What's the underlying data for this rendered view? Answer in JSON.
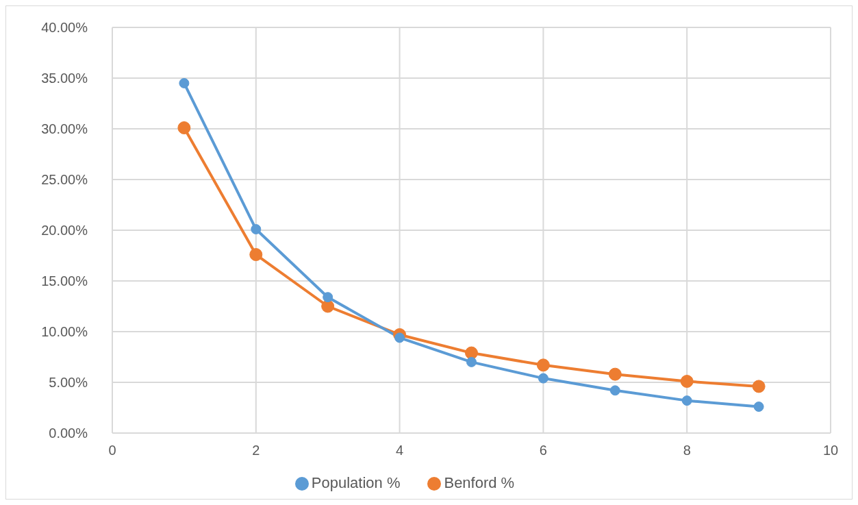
{
  "chart_data": {
    "type": "line",
    "x": [
      1,
      2,
      3,
      4,
      5,
      6,
      7,
      8,
      9
    ],
    "series": [
      {
        "name": "Population %",
        "color": "#5b9bd5",
        "values": [
          34.5,
          20.1,
          13.4,
          9.4,
          7.0,
          5.4,
          4.2,
          3.2,
          2.6
        ]
      },
      {
        "name": "Benford %",
        "color": "#ed7d31",
        "values": [
          30.1,
          17.6,
          12.5,
          9.7,
          7.9,
          6.7,
          5.8,
          5.1,
          4.6
        ]
      }
    ],
    "xlim": [
      0,
      10
    ],
    "xticks": [
      0,
      2,
      4,
      6,
      8,
      10
    ],
    "ylim": [
      0,
      40
    ],
    "yticks": [
      {
        "value": 0,
        "label": "0.00%"
      },
      {
        "value": 5,
        "label": "5.00%"
      },
      {
        "value": 10,
        "label": "10.00%"
      },
      {
        "value": 15,
        "label": "15.00%"
      },
      {
        "value": 20,
        "label": "20.00%"
      },
      {
        "value": 25,
        "label": "25.00%"
      },
      {
        "value": 30,
        "label": "30.00%"
      },
      {
        "value": 35,
        "label": "35.00%"
      },
      {
        "value": 40,
        "label": "40.00%"
      }
    ],
    "grid": true,
    "legend": "bottom",
    "marker": "circle",
    "line_style": "solid"
  }
}
